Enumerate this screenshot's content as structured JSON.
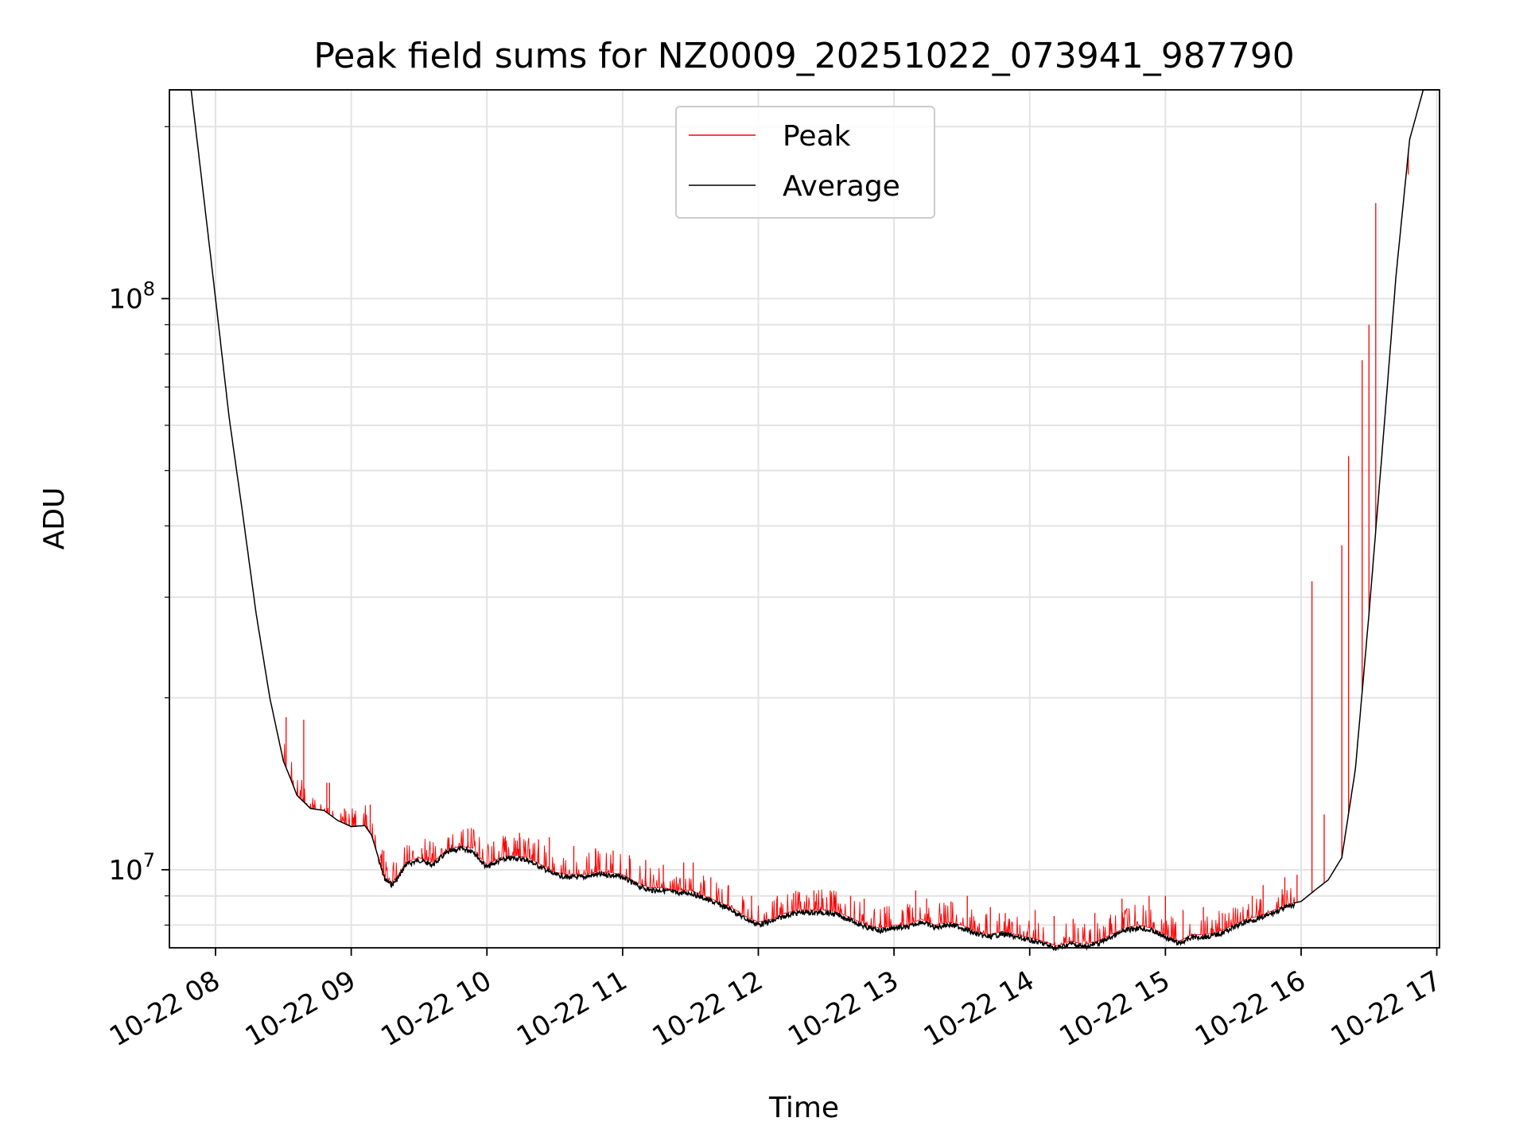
{
  "chart_data": {
    "type": "line",
    "title": "Peak field sums for NZ0009_20251022_073941_987790",
    "xlabel": "Time",
    "ylabel": "ADU",
    "yscale": "log",
    "xlim": [
      7.66,
      17.02
    ],
    "ylim": [
      7300000,
      232000000
    ],
    "grid": true,
    "legend_location": "upper center",
    "x_tick_labels": [
      "10-22 08",
      "10-22 09",
      "10-22 10",
      "10-22 11",
      "10-22 12",
      "10-22 13",
      "10-22 14",
      "10-22 15",
      "10-22 16",
      "10-22 17"
    ],
    "x_ticks": [
      8,
      9,
      10,
      11,
      12,
      13,
      14,
      15,
      16,
      17
    ],
    "y_tick_labels": [
      {
        "base": "10",
        "exp": "7",
        "value": 10000000
      },
      {
        "base": "10",
        "exp": "8",
        "value": 100000000
      }
    ],
    "series": [
      {
        "name": "Average",
        "color": "#000000",
        "x": [
          7.66,
          7.82,
          7.9,
          8.0,
          8.1,
          8.2,
          8.3,
          8.4,
          8.5,
          8.55,
          8.6,
          8.7,
          8.8,
          8.9,
          9.0,
          9.1,
          9.15,
          9.2,
          9.25,
          9.3,
          9.35,
          9.4,
          9.5,
          9.6,
          9.7,
          9.8,
          9.9,
          9.95,
          10.0,
          10.1,
          10.2,
          10.3,
          10.4,
          10.5,
          10.6,
          10.7,
          10.8,
          10.9,
          11.0,
          11.1,
          11.2,
          11.3,
          11.4,
          11.5,
          11.6,
          11.7,
          11.8,
          11.9,
          12.0,
          12.1,
          12.2,
          12.3,
          12.4,
          12.5,
          12.6,
          12.7,
          12.8,
          12.9,
          13.0,
          13.1,
          13.2,
          13.3,
          13.4,
          13.5,
          13.6,
          13.7,
          13.8,
          13.9,
          14.0,
          14.1,
          14.2,
          14.3,
          14.4,
          14.5,
          14.6,
          14.7,
          14.8,
          14.9,
          15.0,
          15.1,
          15.2,
          15.3,
          15.4,
          15.5,
          15.6,
          15.7,
          15.8,
          15.9,
          16.0,
          16.1,
          16.2,
          16.3,
          16.4,
          16.5,
          16.6,
          16.7,
          16.8,
          16.9,
          17.0
        ],
        "y": [
          232000000,
          232000000,
          160000000,
          100000000,
          62000000,
          42000000,
          28000000,
          20000000,
          15500000,
          14500000,
          13500000,
          12800000,
          12700000,
          12200000,
          11900000,
          11950000,
          11500000,
          10500000,
          9700000,
          9500000,
          9800000,
          10300000,
          10500000,
          10300000,
          10800000,
          11000000,
          10900000,
          10500000,
          10200000,
          10500000,
          10600000,
          10500000,
          10200000,
          9900000,
          9800000,
          9800000,
          9900000,
          9900000,
          9800000,
          9500000,
          9300000,
          9300000,
          9200000,
          9200000,
          9000000,
          8800000,
          8600000,
          8300000,
          8100000,
          8200000,
          8400000,
          8500000,
          8500000,
          8500000,
          8400000,
          8200000,
          8000000,
          7900000,
          8000000,
          8000000,
          8200000,
          8000000,
          8100000,
          8000000,
          7800000,
          7700000,
          7800000,
          7700000,
          7600000,
          7500000,
          7350000,
          7500000,
          7400000,
          7500000,
          7700000,
          7900000,
          8000000,
          7900000,
          7700000,
          7500000,
          7700000,
          7700000,
          7800000,
          8000000,
          8200000,
          8300000,
          8500000,
          8700000,
          8800000,
          9200000,
          9600000,
          10500000,
          15000000,
          28000000,
          55000000,
          110000000,
          190000000,
          232000000,
          232000000
        ],
        "line_width": 0.9
      },
      {
        "name": "Peak",
        "color": "#ff0000",
        "line_width": 0.9,
        "spikes": [
          {
            "x": 8.52,
            "y": 18500000
          },
          {
            "x": 8.65,
            "y": 18300000
          },
          {
            "x": 8.82,
            "y": 14200000
          },
          {
            "x": 8.84,
            "y": 14200000
          },
          {
            "x": 8.95,
            "y": 12800000
          },
          {
            "x": 9.14,
            "y": 13000000
          },
          {
            "x": 9.24,
            "y": 10800000
          },
          {
            "x": 9.36,
            "y": 9900000
          },
          {
            "x": 9.52,
            "y": 10900000
          },
          {
            "x": 9.72,
            "y": 11200000
          },
          {
            "x": 9.86,
            "y": 11800000
          },
          {
            "x": 10.05,
            "y": 11200000
          },
          {
            "x": 10.24,
            "y": 11600000
          },
          {
            "x": 10.38,
            "y": 11300000
          },
          {
            "x": 10.46,
            "y": 11400000
          },
          {
            "x": 10.64,
            "y": 11000000
          },
          {
            "x": 10.8,
            "y": 10900000
          },
          {
            "x": 10.93,
            "y": 10800000
          },
          {
            "x": 11.05,
            "y": 10600000
          },
          {
            "x": 11.17,
            "y": 10400000
          },
          {
            "x": 11.3,
            "y": 10200000
          },
          {
            "x": 11.45,
            "y": 10300000
          },
          {
            "x": 11.52,
            "y": 10300000
          },
          {
            "x": 11.65,
            "y": 9700000
          },
          {
            "x": 11.78,
            "y": 9400000
          },
          {
            "x": 11.95,
            "y": 9000000
          },
          {
            "x": 12.14,
            "y": 9000000
          },
          {
            "x": 12.26,
            "y": 9100000
          },
          {
            "x": 12.41,
            "y": 9200000
          },
          {
            "x": 12.53,
            "y": 9200000
          },
          {
            "x": 12.68,
            "y": 9000000
          },
          {
            "x": 12.78,
            "y": 8900000
          },
          {
            "x": 12.93,
            "y": 8600000
          },
          {
            "x": 13.16,
            "y": 9200000
          },
          {
            "x": 13.24,
            "y": 8900000
          },
          {
            "x": 13.42,
            "y": 8800000
          },
          {
            "x": 13.54,
            "y": 9000000
          },
          {
            "x": 13.71,
            "y": 8600000
          },
          {
            "x": 13.82,
            "y": 8400000
          },
          {
            "x": 14.04,
            "y": 8500000
          },
          {
            "x": 14.18,
            "y": 8300000
          },
          {
            "x": 14.32,
            "y": 8200000
          },
          {
            "x": 14.48,
            "y": 8400000
          },
          {
            "x": 14.68,
            "y": 8900000
          },
          {
            "x": 14.88,
            "y": 9000000
          },
          {
            "x": 15.0,
            "y": 9000000
          },
          {
            "x": 15.13,
            "y": 8500000
          },
          {
            "x": 15.28,
            "y": 8600000
          },
          {
            "x": 15.42,
            "y": 8400000
          },
          {
            "x": 15.64,
            "y": 9000000
          },
          {
            "x": 15.72,
            "y": 9400000
          },
          {
            "x": 15.88,
            "y": 9700000
          },
          {
            "x": 15.97,
            "y": 9800000
          },
          {
            "x": 16.08,
            "y": 32000000
          },
          {
            "x": 16.17,
            "y": 12500000
          },
          {
            "x": 16.3,
            "y": 37000000
          },
          {
            "x": 16.35,
            "y": 53000000
          },
          {
            "x": 16.45,
            "y": 78000000
          },
          {
            "x": 16.5,
            "y": 90000000
          },
          {
            "x": 16.55,
            "y": 147000000
          },
          {
            "x": 16.79,
            "y": 165000000
          }
        ]
      }
    ],
    "legend": [
      {
        "label": "Peak",
        "color": "#ff0000"
      },
      {
        "label": "Average",
        "color": "#000000"
      }
    ]
  }
}
